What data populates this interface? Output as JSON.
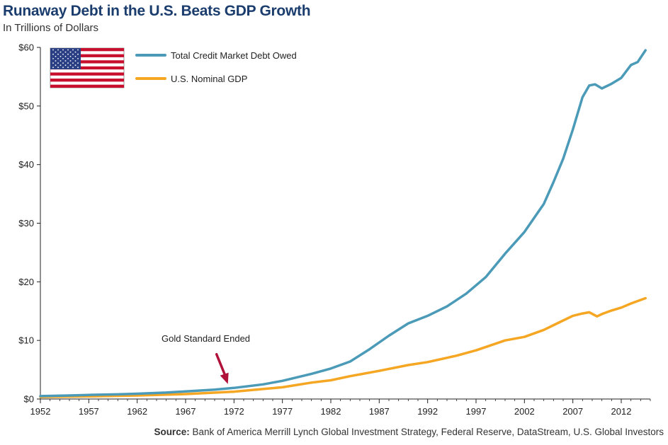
{
  "header": {
    "title": "Runaway Debt in the U.S. Beats GDP Growth",
    "subtitle": "In Trillions of Dollars"
  },
  "footer": {
    "source_label": "Source:",
    "source_text": "Bank of America Merrill Lynch Global Investment Strategy, Federal Reserve, DataStream, U.S. Global Investors"
  },
  "flag_icon": "us-flag-icon",
  "colors": {
    "debt": "#4a9ab8",
    "gdp": "#f5a623",
    "arrow": "#b0123a",
    "axis": "#222222"
  },
  "chart_data": {
    "type": "line",
    "title": "Runaway Debt in the U.S. Beats GDP Growth",
    "subtitle": "In Trillions of Dollars",
    "xlabel": "",
    "ylabel": "",
    "xlim": [
      1952,
      2015
    ],
    "ylim": [
      0,
      60
    ],
    "x_ticks": [
      1952,
      1957,
      1962,
      1967,
      1972,
      1977,
      1982,
      1987,
      1992,
      1997,
      2002,
      2007,
      2012
    ],
    "y_ticks": [
      0,
      10,
      20,
      30,
      40,
      50,
      60
    ],
    "y_tick_labels": [
      "$0",
      "$10",
      "$20",
      "$30",
      "$40",
      "$50",
      "$60"
    ],
    "grid": false,
    "legend_position": "top-left",
    "series": [
      {
        "name": "Total Credit Market Debt Owed",
        "color": "#4a9ab8",
        "points": [
          [
            1952,
            0.5
          ],
          [
            1955,
            0.6
          ],
          [
            1957,
            0.7
          ],
          [
            1960,
            0.8
          ],
          [
            1962,
            0.9
          ],
          [
            1965,
            1.1
          ],
          [
            1967,
            1.3
          ],
          [
            1970,
            1.6
          ],
          [
            1972,
            1.9
          ],
          [
            1975,
            2.5
          ],
          [
            1977,
            3.1
          ],
          [
            1980,
            4.3
          ],
          [
            1982,
            5.2
          ],
          [
            1984,
            6.4
          ],
          [
            1986,
            8.5
          ],
          [
            1988,
            10.8
          ],
          [
            1990,
            12.9
          ],
          [
            1992,
            14.2
          ],
          [
            1994,
            15.8
          ],
          [
            1996,
            18.0
          ],
          [
            1998,
            20.8
          ],
          [
            2000,
            24.8
          ],
          [
            2002,
            28.5
          ],
          [
            2004,
            33.3
          ],
          [
            2005,
            37.0
          ],
          [
            2006,
            41.0
          ],
          [
            2007,
            46.0
          ],
          [
            2008,
            51.5
          ],
          [
            2008.7,
            53.5
          ],
          [
            2009.3,
            53.7
          ],
          [
            2010,
            53.0
          ],
          [
            2011,
            53.8
          ],
          [
            2012,
            54.8
          ],
          [
            2013,
            57.0
          ],
          [
            2013.7,
            57.5
          ],
          [
            2014.5,
            59.5
          ]
        ]
      },
      {
        "name": "U.S. Nominal GDP",
        "color": "#f5a623",
        "points": [
          [
            1952,
            0.35
          ],
          [
            1957,
            0.45
          ],
          [
            1962,
            0.6
          ],
          [
            1967,
            0.85
          ],
          [
            1972,
            1.25
          ],
          [
            1977,
            2.0
          ],
          [
            1980,
            2.8
          ],
          [
            1982,
            3.2
          ],
          [
            1984,
            3.9
          ],
          [
            1987,
            4.8
          ],
          [
            1990,
            5.8
          ],
          [
            1992,
            6.3
          ],
          [
            1995,
            7.4
          ],
          [
            1997,
            8.3
          ],
          [
            2000,
            10.0
          ],
          [
            2002,
            10.6
          ],
          [
            2004,
            11.8
          ],
          [
            2006,
            13.4
          ],
          [
            2007,
            14.2
          ],
          [
            2008,
            14.6
          ],
          [
            2008.7,
            14.8
          ],
          [
            2009.5,
            14.1
          ],
          [
            2010,
            14.5
          ],
          [
            2011,
            15.1
          ],
          [
            2012,
            15.6
          ],
          [
            2013,
            16.3
          ],
          [
            2014.5,
            17.2
          ]
        ]
      }
    ],
    "annotations": [
      {
        "text": "Gold Standard Ended",
        "x": 1971,
        "y": 1.6
      }
    ]
  }
}
